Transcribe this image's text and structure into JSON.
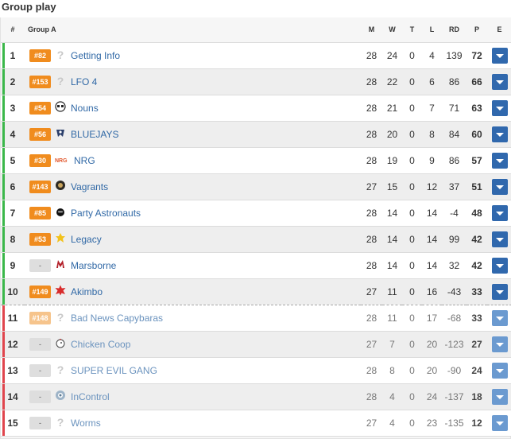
{
  "page": {
    "title": "Group play"
  },
  "table": {
    "headers": {
      "rank": "#",
      "team": "Group A",
      "matches": "M",
      "wins": "W",
      "ties": "T",
      "losses": "L",
      "round_diff": "RD",
      "points": "P",
      "expand": "E"
    },
    "rows": [
      {
        "rank": "1",
        "seed": "#82",
        "team": "Getting Info",
        "logo": "question-icon",
        "m": "28",
        "w": "24",
        "t": "0",
        "l": "4",
        "rd": "139",
        "p": "72",
        "status": "qualified"
      },
      {
        "rank": "2",
        "seed": "#153",
        "team": "LFO 4",
        "logo": "question-icon",
        "m": "28",
        "w": "22",
        "t": "0",
        "l": "6",
        "rd": "86",
        "p": "66",
        "status": "qualified"
      },
      {
        "rank": "3",
        "seed": "#54",
        "team": "Nouns",
        "logo": "nouns-logo",
        "m": "28",
        "w": "21",
        "t": "0",
        "l": "7",
        "rd": "71",
        "p": "63",
        "status": "qualified"
      },
      {
        "rank": "4",
        "seed": "#56",
        "team": "BLUEJAYS",
        "logo": "bluejays-logo",
        "m": "28",
        "w": "20",
        "t": "0",
        "l": "8",
        "rd": "84",
        "p": "60",
        "status": "qualified"
      },
      {
        "rank": "5",
        "seed": "#30",
        "team": "NRG",
        "logo": "nrg-logo",
        "m": "28",
        "w": "19",
        "t": "0",
        "l": "9",
        "rd": "86",
        "p": "57",
        "status": "qualified"
      },
      {
        "rank": "6",
        "seed": "#143",
        "team": "Vagrants",
        "logo": "vagrants-logo",
        "m": "27",
        "w": "15",
        "t": "0",
        "l": "12",
        "rd": "37",
        "p": "51",
        "status": "qualified"
      },
      {
        "rank": "7",
        "seed": "#85",
        "team": "Party Astronauts",
        "logo": "astronauts-logo",
        "m": "28",
        "w": "14",
        "t": "0",
        "l": "14",
        "rd": "-4",
        "p": "48",
        "status": "qualified"
      },
      {
        "rank": "8",
        "seed": "#53",
        "team": "Legacy",
        "logo": "legacy-logo",
        "m": "28",
        "w": "14",
        "t": "0",
        "l": "14",
        "rd": "99",
        "p": "42",
        "status": "qualified"
      },
      {
        "rank": "9",
        "seed": "-",
        "team": "Marsborne",
        "logo": "marsborne-logo",
        "m": "28",
        "w": "14",
        "t": "0",
        "l": "14",
        "rd": "32",
        "p": "42",
        "status": "qualified"
      },
      {
        "rank": "10",
        "seed": "#149",
        "team": "Akimbo",
        "logo": "akimbo-logo",
        "m": "27",
        "w": "11",
        "t": "0",
        "l": "16",
        "rd": "-43",
        "p": "33",
        "status": "qualified"
      },
      {
        "rank": "11",
        "seed": "#148",
        "team": "Bad News Capybaras",
        "logo": "question-icon",
        "m": "28",
        "w": "11",
        "t": "0",
        "l": "17",
        "rd": "-68",
        "p": "33",
        "status": "eliminated"
      },
      {
        "rank": "12",
        "seed": "-",
        "team": "Chicken Coop",
        "logo": "chicken-logo",
        "m": "27",
        "w": "7",
        "t": "0",
        "l": "20",
        "rd": "-123",
        "p": "27",
        "status": "eliminated"
      },
      {
        "rank": "13",
        "seed": "-",
        "team": "SUPER EVIL GANG",
        "logo": "question-icon",
        "m": "28",
        "w": "8",
        "t": "0",
        "l": "20",
        "rd": "-90",
        "p": "24",
        "status": "eliminated"
      },
      {
        "rank": "14",
        "seed": "-",
        "team": "InControl",
        "logo": "incontrol-logo",
        "m": "28",
        "w": "4",
        "t": "0",
        "l": "24",
        "rd": "-137",
        "p": "18",
        "status": "eliminated"
      },
      {
        "rank": "15",
        "seed": "-",
        "team": "Worms",
        "logo": "question-icon",
        "m": "27",
        "w": "4",
        "t": "0",
        "l": "23",
        "rd": "-135",
        "p": "12",
        "status": "eliminated"
      }
    ]
  },
  "colors": {
    "qualified": "#3bb74a",
    "eliminated": "#e0454d",
    "seed_badge": "#f08c1e",
    "link": "#3169a6",
    "expand_button": "#3068ad"
  }
}
